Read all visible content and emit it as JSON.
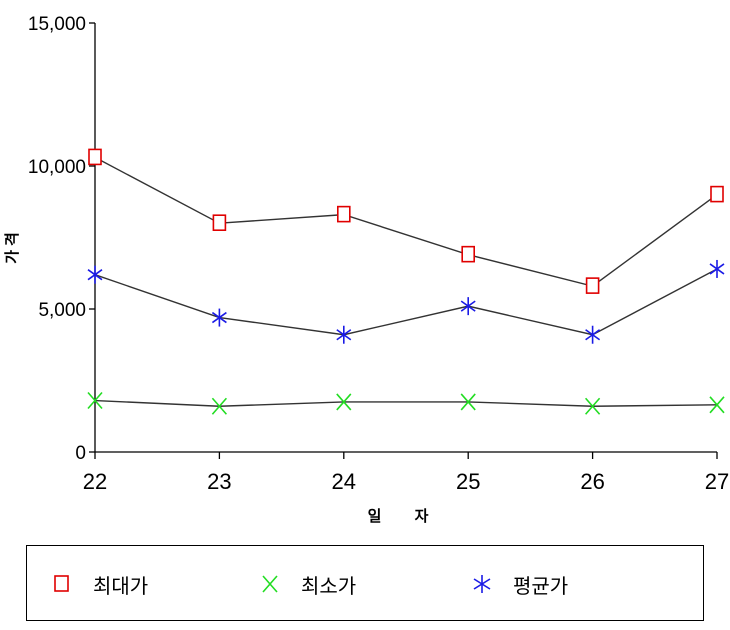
{
  "chart_data": {
    "type": "line",
    "title": "",
    "xlabel": "일 자",
    "ylabel": "가격",
    "categories": [
      "22",
      "23",
      "24",
      "25",
      "26",
      "27"
    ],
    "ylim": [
      0,
      15000
    ],
    "y_ticks": [
      "0",
      "5,000",
      "10,000",
      "15,000"
    ],
    "y_tick_values": [
      0,
      5000,
      10000,
      15000
    ],
    "grid": false,
    "legend_position": "bottom",
    "series": [
      {
        "name": "최대가",
        "values": [
          10300,
          8000,
          8300,
          6900,
          5800,
          9000
        ],
        "color": "#e00000",
        "marker": "square"
      },
      {
        "name": "최소가",
        "values": [
          1800,
          1600,
          1750,
          1750,
          1600,
          1650
        ],
        "color": "#22dd22",
        "marker": "x"
      },
      {
        "name": "평균가",
        "values": [
          6200,
          4700,
          4100,
          5100,
          4100,
          6400
        ],
        "color": "#1a1ae6",
        "marker": "asterisk"
      }
    ]
  }
}
